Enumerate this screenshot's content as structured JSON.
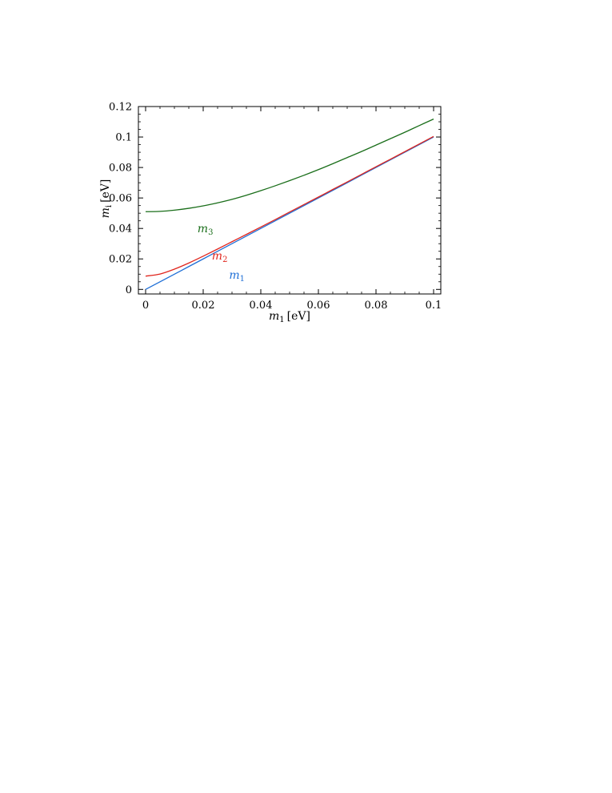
{
  "chart_data": {
    "type": "line",
    "title": "",
    "xlabel": {
      "base": "m",
      "sub": "1",
      "unit": "[eV]"
    },
    "ylabel": {
      "base": "m",
      "sub": "i",
      "unit": "[eV]"
    },
    "xlim": [
      -0.0025,
      0.1025
    ],
    "ylim": [
      -0.003,
      0.12
    ],
    "x_ticks": [
      0,
      0.02,
      0.04,
      0.06,
      0.08,
      0.1
    ],
    "x_tick_labels": [
      "0",
      "0.02",
      "0.04",
      "0.06",
      "0.08",
      "0.1"
    ],
    "y_ticks": [
      0,
      0.02,
      0.04,
      0.06,
      0.08,
      0.1,
      0.12
    ],
    "y_tick_labels": [
      "0",
      "0.02",
      "0.04",
      "0.06",
      "0.08",
      "0.1",
      "0.12"
    ],
    "grid": false,
    "x": [
      0,
      0.005,
      0.01,
      0.015,
      0.02,
      0.025,
      0.03,
      0.035,
      0.04,
      0.045,
      0.05,
      0.055,
      0.06,
      0.065,
      0.07,
      0.075,
      0.08,
      0.085,
      0.09,
      0.095,
      0.1
    ],
    "series": [
      {
        "name": "m1",
        "label_base": "m",
        "label_sub": "1",
        "color": "#1f6fd6",
        "label_at": [
          0.029,
          0.007
        ],
        "values": [
          0,
          0.005,
          0.01,
          0.015,
          0.02,
          0.025,
          0.03,
          0.035,
          0.04,
          0.045,
          0.05,
          0.055,
          0.06,
          0.065,
          0.07,
          0.075,
          0.08,
          0.085,
          0.09,
          0.095,
          0.1
        ]
      },
      {
        "name": "m2",
        "label_base": "m",
        "label_sub": "2",
        "color": "#e0261e",
        "label_at": [
          0.023,
          0.0195
        ],
        "values": [
          0.0087,
          0.0101,
          0.0133,
          0.0173,
          0.0218,
          0.0265,
          0.0313,
          0.0361,
          0.0409,
          0.0458,
          0.0508,
          0.0557,
          0.0606,
          0.0656,
          0.0705,
          0.0755,
          0.0805,
          0.0854,
          0.0904,
          0.0954,
          0.1004
        ]
      },
      {
        "name": "m3",
        "label_base": "m",
        "label_sub": "3",
        "color": "#1a6e1a",
        "label_at": [
          0.018,
          0.0375
        ],
        "values": [
          0.051,
          0.0512,
          0.052,
          0.0532,
          0.0548,
          0.0568,
          0.0591,
          0.0618,
          0.0648,
          0.068,
          0.0714,
          0.0749,
          0.0786,
          0.0825,
          0.0865,
          0.0905,
          0.0947,
          0.0989,
          0.1031,
          0.1075,
          0.1118
        ]
      }
    ]
  }
}
